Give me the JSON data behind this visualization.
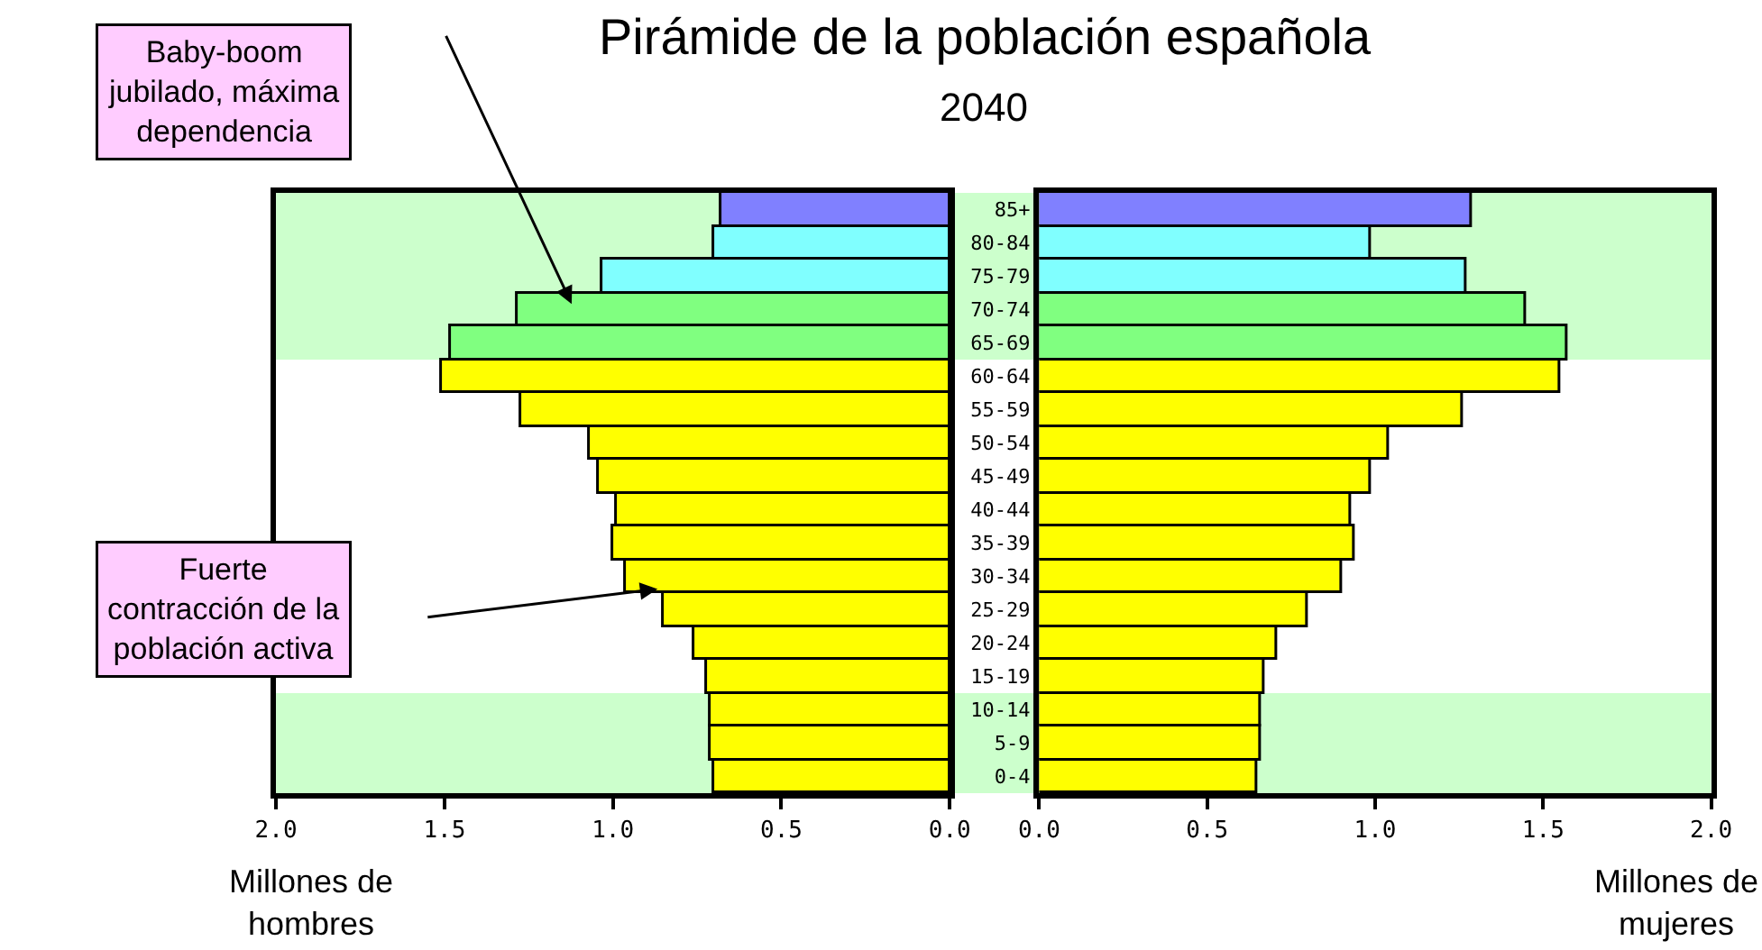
{
  "chart_data": [
    {
      "type": "bar",
      "orientation": "horizontal",
      "title": "Pirámide de la población española",
      "subtitle": "2040",
      "xlabel": "Millones de\nhombres",
      "categories": [
        "85+",
        "80-84",
        "75-79",
        "70-74",
        "65-69",
        "60-64",
        "55-59",
        "50-54",
        "45-49",
        "40-44",
        "35-39",
        "30-34",
        "25-29",
        "20-24",
        "15-19",
        "10-14",
        "5-9",
        "0-4"
      ],
      "values": [
        0.68,
        0.7,
        1.03,
        1.28,
        1.48,
        1.51,
        1.27,
        1.07,
        1.04,
        0.99,
        1.0,
        0.96,
        0.85,
        0.76,
        0.72,
        0.71,
        0.71,
        0.7
      ],
      "colors": [
        "#8080ff",
        "#80ffff",
        "#80ffff",
        "#80ff80",
        "#80ff80",
        "#ffff00",
        "#ffff00",
        "#ffff00",
        "#ffff00",
        "#ffff00",
        "#ffff00",
        "#ffff00",
        "#ffff00",
        "#ffff00",
        "#ffff00",
        "#ffff00",
        "#ffff00",
        "#ffff00"
      ],
      "xlim": [
        2.0,
        0.0
      ],
      "xticks": [
        {
          "value": 2,
          "label": "2.0"
        },
        {
          "value": 1.5,
          "label": "1.5"
        },
        {
          "value": 1,
          "label": "1.0"
        },
        {
          "value": 0.5,
          "label": "0.5"
        },
        {
          "value": 0,
          "label": "0.0"
        }
      ],
      "bands": [
        {
          "axis": "y",
          "from": "85+",
          "to": "65-69",
          "color": "#ccffcc"
        },
        {
          "axis": "y",
          "from": "10-14",
          "to": "0-4",
          "color": "#ccffcc"
        }
      ],
      "annotations": [
        "Baby-boom\njubilado, máxima\ndependencia",
        "Fuerte\ncontracción de la\npoblación activa"
      ],
      "tick_labels": "x",
      "grid": false
    },
    {
      "type": "bar",
      "orientation": "horizontal",
      "xlabel": "Millones de\nmujeres",
      "categories": [
        "85+",
        "80-84",
        "75-79",
        "70-74",
        "65-69",
        "60-64",
        "55-59",
        "50-54",
        "45-49",
        "40-44",
        "35-39",
        "30-34",
        "25-29",
        "20-24",
        "15-19",
        "10-14",
        "5-9",
        "0-4"
      ],
      "values": [
        1.29,
        0.99,
        1.27,
        1.45,
        1.57,
        1.55,
        1.26,
        1.04,
        0.99,
        0.93,
        0.94,
        0.9,
        0.8,
        0.71,
        0.67,
        0.66,
        0.66,
        0.65
      ],
      "colors": [
        "#8080ff",
        "#80ffff",
        "#80ffff",
        "#80ff80",
        "#80ff80",
        "#ffff00",
        "#ffff00",
        "#ffff00",
        "#ffff00",
        "#ffff00",
        "#ffff00",
        "#ffff00",
        "#ffff00",
        "#ffff00",
        "#ffff00",
        "#ffff00",
        "#ffff00",
        "#ffff00"
      ],
      "xlim": [
        0.0,
        2.0
      ],
      "xticks": [
        {
          "value": 0,
          "label": "0.0"
        },
        {
          "value": 0.5,
          "label": "0.5"
        },
        {
          "value": 1,
          "label": "1.0"
        },
        {
          "value": 1.5,
          "label": "1.5"
        },
        {
          "value": 2,
          "label": "2.0"
        }
      ],
      "bands": [
        {
          "axis": "y",
          "from": "85+",
          "to": "65-69",
          "color": "#ccffcc"
        },
        {
          "axis": "y",
          "from": "10-14",
          "to": "0-4",
          "color": "#ccffcc"
        }
      ],
      "grid": false
    }
  ]
}
